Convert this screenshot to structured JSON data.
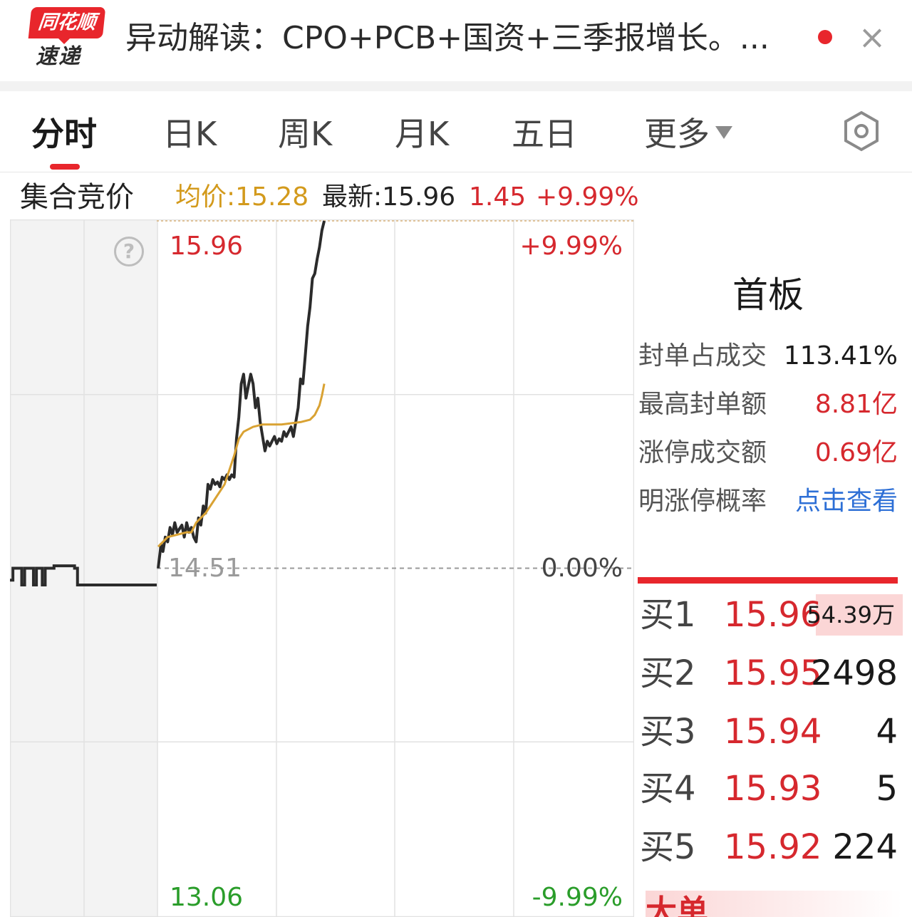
{
  "header": {
    "logo_top": "同花顺",
    "logo_bottom": "速递",
    "headline": "异动解读：CPO+PCB+国资+三季报增长。...",
    "close_label": "×"
  },
  "tabs": [
    {
      "label": "分时",
      "active": true
    },
    {
      "label": "日K"
    },
    {
      "label": "周K"
    },
    {
      "label": "月K"
    },
    {
      "label": "五日"
    },
    {
      "label": "更多"
    }
  ],
  "info_bar": {
    "label": "集合竞价",
    "avg_price": "均价:15.28",
    "latest": "最新:15.96",
    "change": "1.45",
    "change_pct": "+9.99%"
  },
  "chart_data": {
    "type": "line",
    "price_labels": {
      "high": "15.96",
      "base": "14.51",
      "low": "13.06"
    },
    "pct_labels": {
      "high": "+9.99%",
      "base": "0.00%",
      "low": "-9.99%"
    },
    "ylim": [
      13.06,
      15.96
    ],
    "prev_close": 14.51,
    "colors": {
      "price": "#2b2b2b",
      "avg": "#d9a233",
      "up": "#d6282e",
      "down": "#2a9d2a",
      "grid": "#e2e2e2"
    },
    "auction": [
      [
        0,
        14.46
      ],
      [
        0.02,
        14.51
      ],
      [
        0.06,
        14.51
      ],
      [
        0.08,
        14.44
      ],
      [
        0.1,
        14.51
      ],
      [
        0.14,
        14.51
      ],
      [
        0.16,
        14.44
      ],
      [
        0.18,
        14.51
      ],
      [
        0.22,
        14.44
      ],
      [
        0.24,
        14.51
      ],
      [
        0.26,
        14.51
      ],
      [
        0.3,
        14.52
      ],
      [
        0.42,
        14.52
      ],
      [
        0.44,
        14.51
      ],
      [
        0.46,
        14.44
      ],
      [
        1,
        14.44
      ]
    ],
    "series": [
      {
        "name": "price",
        "points": [
          [
            0,
            14.51
          ],
          [
            0.003,
            14.56
          ],
          [
            0.006,
            14.61
          ],
          [
            0.01,
            14.58
          ],
          [
            0.015,
            14.64
          ],
          [
            0.02,
            14.62
          ],
          [
            0.025,
            14.68
          ],
          [
            0.03,
            14.65
          ],
          [
            0.035,
            14.7
          ],
          [
            0.04,
            14.66
          ],
          [
            0.05,
            14.69
          ],
          [
            0.055,
            14.64
          ],
          [
            0.06,
            14.7
          ],
          [
            0.065,
            14.66
          ],
          [
            0.07,
            14.68
          ],
          [
            0.075,
            14.64
          ],
          [
            0.08,
            14.62
          ],
          [
            0.085,
            14.72
          ],
          [
            0.09,
            14.69
          ],
          [
            0.095,
            14.77
          ],
          [
            0.1,
            14.74
          ],
          [
            0.105,
            14.86
          ],
          [
            0.11,
            14.84
          ],
          [
            0.115,
            14.88
          ],
          [
            0.12,
            14.86
          ],
          [
            0.125,
            14.87
          ],
          [
            0.13,
            14.85
          ],
          [
            0.135,
            14.89
          ],
          [
            0.14,
            14.88
          ],
          [
            0.145,
            14.9
          ],
          [
            0.15,
            14.88
          ],
          [
            0.155,
            14.9
          ],
          [
            0.16,
            14.89
          ],
          [
            0.165,
            15.05
          ],
          [
            0.17,
            15.14
          ],
          [
            0.175,
            15.28
          ],
          [
            0.18,
            15.32
          ],
          [
            0.185,
            15.22
          ],
          [
            0.19,
            15.27
          ],
          [
            0.195,
            15.32
          ],
          [
            0.2,
            15.28
          ],
          [
            0.205,
            15.18
          ],
          [
            0.21,
            15.22
          ],
          [
            0.215,
            15.12
          ],
          [
            0.22,
            15.06
          ],
          [
            0.225,
            15.0
          ],
          [
            0.23,
            15.04
          ],
          [
            0.235,
            15.02
          ],
          [
            0.24,
            15.04
          ],
          [
            0.245,
            15.06
          ],
          [
            0.25,
            15.03
          ],
          [
            0.255,
            15.05
          ],
          [
            0.26,
            15.04
          ],
          [
            0.265,
            15.08
          ],
          [
            0.27,
            15.06
          ],
          [
            0.275,
            15.08
          ],
          [
            0.28,
            15.1
          ],
          [
            0.285,
            15.06
          ],
          [
            0.29,
            15.12
          ],
          [
            0.295,
            15.18
          ],
          [
            0.3,
            15.3
          ],
          [
            0.305,
            15.28
          ],
          [
            0.31,
            15.4
          ],
          [
            0.315,
            15.52
          ],
          [
            0.32,
            15.6
          ],
          [
            0.325,
            15.72
          ],
          [
            0.33,
            15.74
          ],
          [
            0.335,
            15.8
          ],
          [
            0.34,
            15.85
          ],
          [
            0.345,
            15.92
          ],
          [
            0.35,
            15.96
          ]
        ]
      },
      {
        "name": "avg",
        "points": [
          [
            0.0,
            14.6
          ],
          [
            0.02,
            14.64
          ],
          [
            0.04,
            14.65
          ],
          [
            0.06,
            14.66
          ],
          [
            0.07,
            14.66
          ],
          [
            0.08,
            14.7
          ],
          [
            0.1,
            14.74
          ],
          [
            0.12,
            14.8
          ],
          [
            0.14,
            14.86
          ],
          [
            0.15,
            14.92
          ],
          [
            0.16,
            14.98
          ],
          [
            0.17,
            15.05
          ],
          [
            0.18,
            15.08
          ],
          [
            0.2,
            15.1
          ],
          [
            0.22,
            15.11
          ],
          [
            0.26,
            15.11
          ],
          [
            0.3,
            15.12
          ],
          [
            0.32,
            15.13
          ],
          [
            0.33,
            15.15
          ],
          [
            0.34,
            15.19
          ],
          [
            0.345,
            15.23
          ],
          [
            0.35,
            15.28
          ]
        ]
      }
    ]
  },
  "panel": {
    "board_title": "首板",
    "stats": [
      {
        "label": "封单占成交",
        "value": "113.41%",
        "color": "#1a1a1a"
      },
      {
        "label": "最高封单额",
        "value": "8.81亿",
        "color": "#d6282e"
      },
      {
        "label": "涨停成交额",
        "value": "0.69亿",
        "color": "#d6282e"
      },
      {
        "label": "明涨停概率",
        "value": "点击查看",
        "color": "#2d6fd6"
      }
    ],
    "order_book": [
      {
        "label": "买1",
        "price": "15.96",
        "qty": "54.39万"
      },
      {
        "label": "买2",
        "price": "15.95",
        "qty": "2498"
      },
      {
        "label": "买3",
        "price": "15.94",
        "qty": "4"
      },
      {
        "label": "买4",
        "price": "15.93",
        "qty": "5"
      },
      {
        "label": "买5",
        "price": "15.92",
        "qty": "224"
      }
    ],
    "partial_label": "大单"
  }
}
